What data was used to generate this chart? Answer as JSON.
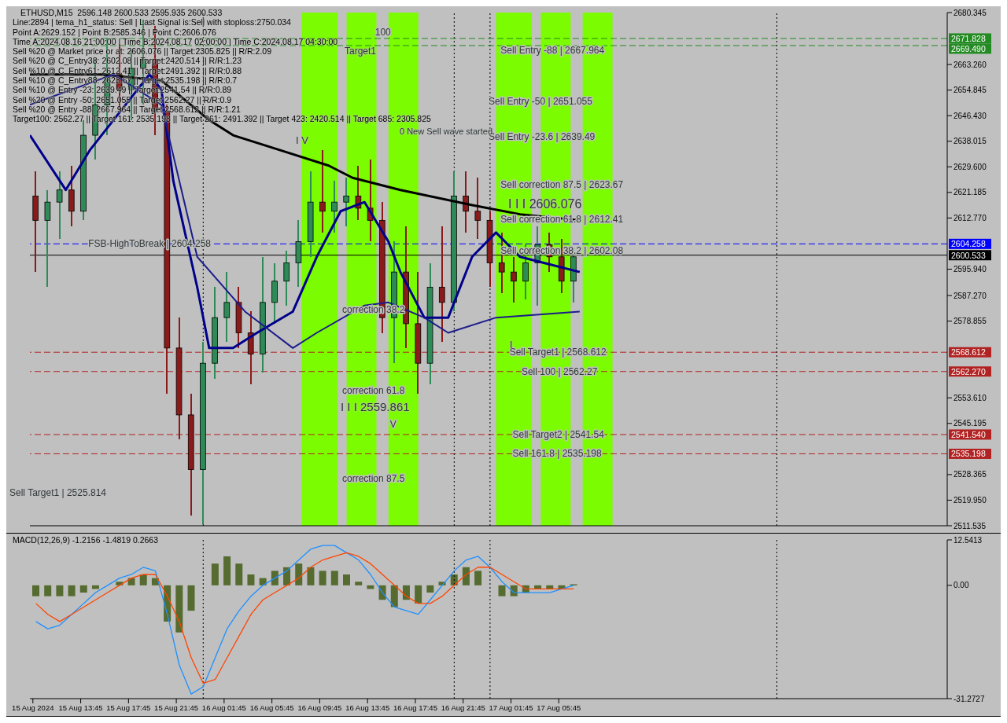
{
  "chart_data": [
    {
      "type": "candlestick",
      "title": "ETHUSD,M15  2596.148 2600.533 2595.935 2600.533",
      "x": [
        "2024-08-15T10:00",
        "2024-08-15T11:00",
        "2024-08-15T12:00",
        "2024-08-15T13:00",
        "2024-08-15T14:00",
        "2024-08-15T15:00",
        "2024-08-15T16:00",
        "2024-08-15T17:00",
        "2024-08-15T18:00",
        "2024-08-15T19:00",
        "2024-08-15T20:00",
        "2024-08-15T21:00",
        "2024-08-15T22:00",
        "2024-08-15T23:00",
        "2024-08-16T00:00",
        "2024-08-16T01:00",
        "2024-08-16T02:00",
        "2024-08-16T03:00",
        "2024-08-16T04:00",
        "2024-08-16T05:00",
        "2024-08-16T06:00",
        "2024-08-16T07:00",
        "2024-08-16T08:00",
        "2024-08-16T09:00",
        "2024-08-16T10:00",
        "2024-08-16T11:00",
        "2024-08-16T12:00",
        "2024-08-16T13:00",
        "2024-08-16T14:00",
        "2024-08-16T15:00",
        "2024-08-16T16:00",
        "2024-08-16T17:00",
        "2024-08-16T18:00",
        "2024-08-16T19:00",
        "2024-08-16T20:00",
        "2024-08-16T21:00",
        "2024-08-16T22:00",
        "2024-08-16T23:00",
        "2024-08-17T00:00",
        "2024-08-17T01:00",
        "2024-08-17T02:00",
        "2024-08-17T03:00",
        "2024-08-17T04:00",
        "2024-08-17T05:00",
        "2024-08-17T06:00",
        "2024-08-17T07:00"
      ],
      "ohlc": [
        [
          2620,
          2628,
          2595,
          2612
        ],
        [
          2612,
          2622,
          2590,
          2618
        ],
        [
          2618,
          2628,
          2606,
          2622
        ],
        [
          2622,
          2630,
          2610,
          2615
        ],
        [
          2615,
          2645,
          2612,
          2640
        ],
        [
          2640,
          2665,
          2632,
          2650
        ],
        [
          2650,
          2672,
          2640,
          2660
        ],
        [
          2660,
          2670,
          2648,
          2655
        ],
        [
          2655,
          2668,
          2645,
          2662
        ],
        [
          2662,
          2678,
          2650,
          2665
        ],
        [
          2665,
          2676,
          2640,
          2648
        ],
        [
          2648,
          2650,
          2555,
          2570
        ],
        [
          2570,
          2580,
          2540,
          2548
        ],
        [
          2548,
          2555,
          2515,
          2530
        ],
        [
          2530,
          2572,
          2512,
          2565
        ],
        [
          2565,
          2590,
          2560,
          2580
        ],
        [
          2580,
          2595,
          2572,
          2585
        ],
        [
          2585,
          2590,
          2570,
          2575
        ],
        [
          2575,
          2582,
          2558,
          2568
        ],
        [
          2568,
          2600,
          2562,
          2585
        ],
        [
          2585,
          2598,
          2578,
          2592
        ],
        [
          2592,
          2602,
          2584,
          2598
        ],
        [
          2598,
          2612,
          2590,
          2605
        ],
        [
          2605,
          2628,
          2600,
          2618
        ],
        [
          2618,
          2635,
          2608,
          2615
        ],
        [
          2615,
          2625,
          2608,
          2618
        ],
        [
          2618,
          2626,
          2610,
          2620
        ],
        [
          2620,
          2630,
          2612,
          2616
        ],
        [
          2616,
          2632,
          2605,
          2612
        ],
        [
          2612,
          2618,
          2575,
          2580
        ],
        [
          2580,
          2605,
          2565,
          2595
        ],
        [
          2595,
          2610,
          2570,
          2578
        ],
        [
          2578,
          2595,
          2555,
          2565
        ],
        [
          2565,
          2598,
          2558,
          2590
        ],
        [
          2590,
          2610,
          2572,
          2585
        ],
        [
          2585,
          2628,
          2582,
          2620
        ],
        [
          2620,
          2628,
          2608,
          2615
        ],
        [
          2615,
          2626,
          2606,
          2612
        ],
        [
          2612,
          2615,
          2590,
          2598
        ],
        [
          2598,
          2608,
          2588,
          2595
        ],
        [
          2595,
          2600,
          2585,
          2592
        ],
        [
          2592,
          2604,
          2586,
          2598
        ],
        [
          2598,
          2610,
          2584,
          2604
        ],
        [
          2604,
          2608,
          2595,
          2600
        ],
        [
          2600,
          2606,
          2588,
          2592
        ],
        [
          2592,
          2603,
          2585,
          2600
        ]
      ],
      "colors": [
        "#8b1a1a",
        "#2e8b57",
        "#2e8b57",
        "#8b1a1a",
        "#2e8b57",
        "#2e8b57",
        "#2e8b57",
        "#8b1a1a",
        "#2e8b57",
        "#2e8b57",
        "#8b1a1a",
        "#8b1a1a",
        "#8b1a1a",
        "#8b1a1a",
        "#2e8b57",
        "#2e8b57",
        "#2e8b57",
        "#8b1a1a",
        "#8b1a1a",
        "#2e8b57",
        "#2e8b57",
        "#2e8b57",
        "#2e8b57",
        "#2e8b57",
        "#8b1a1a",
        "#2e8b57",
        "#2e8b57",
        "#8b1a1a",
        "#8b1a1a",
        "#8b1a1a",
        "#2e8b57",
        "#8b1a1a",
        "#8b1a1a",
        "#2e8b57",
        "#8b1a1a",
        "#2e8b57",
        "#8b1a1a",
        "#8b1a1a",
        "#8b1a1a",
        "#8b1a1a",
        "#8b1a1a",
        "#2e8b57",
        "#2e8b57",
        "#8b1a1a",
        "#8b1a1a",
        "#2e8b57"
      ],
      "series": [
        {
          "type": "line",
          "color": "#000000",
          "x": [
            "2024-08-15T09:30",
            "2024-08-15T15:30",
            "2024-08-15T20:30",
            "2024-08-16T00:30",
            "2024-08-16T02:30",
            "2024-08-16T06:30",
            "2024-08-16T10:30",
            "2024-08-16T12:30",
            "2024-08-16T16:30",
            "2024-08-16T22:30",
            "2024-08-17T02:30",
            "2024-08-17T07:30"
          ],
          "values": [
            2660,
            2660,
            2658,
            2645,
            2640,
            2635,
            2630,
            2626,
            2622,
            2617,
            2614,
            2612
          ]
        },
        {
          "type": "line",
          "color": "#00008b",
          "x": [
            "2024-08-15T09:30",
            "2024-08-15T12:30",
            "2024-08-15T14:30",
            "2024-08-15T17:30",
            "2024-08-15T19:30",
            "2024-08-15T20:30",
            "2024-08-15T21:30",
            "2024-08-15T23:30",
            "2024-08-16T00:30",
            "2024-08-16T02:30",
            "2024-08-16T04:30",
            "2024-08-16T07:30",
            "2024-08-16T09:30",
            "2024-08-16T11:30",
            "2024-08-16T13:30",
            "2024-08-16T15:30",
            "2024-08-16T16:30",
            "2024-08-16T18:30",
            "2024-08-16T20:30",
            "2024-08-16T22:30",
            "2024-08-17T00:30",
            "2024-08-17T02:30",
            "2024-08-17T04:30",
            "2024-08-17T07:30"
          ],
          "values": [
            2640,
            2622,
            2635,
            2650,
            2660,
            2655,
            2625,
            2590,
            2570,
            2570,
            2575,
            2582,
            2600,
            2615,
            2618,
            2605,
            2595,
            2580,
            2580,
            2600,
            2608,
            2600,
            2598,
            2595
          ]
        },
        {
          "type": "line",
          "color": "#1c1c8c",
          "x": [
            "2024-08-15T09:30",
            "2024-08-15T16:30",
            "2024-08-15T20:30",
            "2024-08-15T23:30",
            "2024-08-16T03:30",
            "2024-08-16T07:30",
            "2024-08-16T09:30",
            "2024-08-16T13:30",
            "2024-08-16T15:30",
            "2024-08-16T18:30",
            "2024-08-16T20:30",
            "2024-08-17T00:30",
            "2024-08-17T07:30"
          ],
          "values": [
            2650,
            2660,
            2650,
            2600,
            2582,
            2570,
            2575,
            2584,
            2585,
            2580,
            2575,
            2580,
            2582
          ]
        }
      ],
      "xlim": [
        "2024-08-15T09:30",
        "2024-08-18T14:15"
      ],
      "ylim": [
        2511.535,
        2680.345
      ],
      "yticks": [
        {
          "value": 2680.345,
          "label": "2680.345"
        },
        {
          "value": 2663.26,
          "label": "2663.260"
        },
        {
          "value": 2654.845,
          "label": "2654.845"
        },
        {
          "value": 2646.43,
          "label": "2646.430"
        },
        {
          "value": 2638.015,
          "label": "2638.015"
        },
        {
          "value": 2629.6,
          "label": "2629.600"
        },
        {
          "value": 2621.185,
          "label": "2621.185"
        },
        {
          "value": 2612.77,
          "label": "2612.770"
        },
        {
          "value": 2595.94,
          "label": "2595.940"
        },
        {
          "value": 2587.27,
          "label": "2587.270"
        },
        {
          "value": 2578.855,
          "label": "2578.855"
        },
        {
          "value": 2553.61,
          "label": "2553.610"
        },
        {
          "value": 2545.195,
          "label": "2545.195"
        },
        {
          "value": 2528.365,
          "label": "2528.365"
        },
        {
          "value": 2519.95,
          "label": "2519.950"
        },
        {
          "value": 2511.535,
          "label": "2511.535"
        }
      ],
      "tick_labels": "y",
      "ref_lines": [
        {
          "axis": "y",
          "value": 2671.828,
          "label": "2671.828",
          "color": "#228b22",
          "line_style": "dashed"
        },
        {
          "axis": "y",
          "value": 2669.49,
          "label": "2669.490",
          "color": "#228b22",
          "line_style": "dashed"
        },
        {
          "axis": "y",
          "value": 2604.258,
          "label": "2604.258",
          "color": "#0000ff",
          "line_style": "dashed"
        },
        {
          "axis": "y",
          "value": 2600.533,
          "label": "2600.533",
          "color": "#000000",
          "line_style": "solid"
        },
        {
          "axis": "y",
          "value": 2568.612,
          "label": "2568.612",
          "color": "#b22222",
          "line_style": "dashed"
        },
        {
          "axis": "y",
          "value": 2562.27,
          "label": "2562.270",
          "color": "#b22222",
          "line_style": "dashed"
        },
        {
          "axis": "y",
          "value": 2541.54,
          "label": "2541.540",
          "color": "#b22222",
          "line_style": "dashed"
        },
        {
          "axis": "y",
          "value": 2535.198,
          "label": "2535.198",
          "color": "#b22222",
          "line_style": "dashed"
        },
        {
          "axis": "x",
          "value": "2024-08-16T00:00",
          "color": "#000000",
          "line_style": "dotted"
        },
        {
          "axis": "x",
          "value": "2024-08-16T21:00",
          "color": "#000000",
          "line_style": "dotted"
        },
        {
          "axis": "x",
          "value": "2024-08-17T00:00",
          "color": "#000000",
          "line_style": "dotted"
        },
        {
          "axis": "x",
          "value": "2024-08-18T00:00",
          "color": "#000000",
          "line_style": "dotted"
        }
      ],
      "bands": [
        {
          "axis": "x",
          "from": "2024-08-16T08:15",
          "to": "2024-08-16T11:15",
          "color": "#7cfc00"
        },
        {
          "axis": "x",
          "from": "2024-08-16T12:00",
          "to": "2024-08-16T14:30",
          "color": "#7cfc00"
        },
        {
          "axis": "x",
          "from": "2024-08-16T15:30",
          "to": "2024-08-16T18:00",
          "color": "#7cfc00"
        },
        {
          "axis": "x",
          "from": "2024-08-17T00:30",
          "to": "2024-08-17T03:30",
          "color": "#7cfc00"
        },
        {
          "axis": "x",
          "from": "2024-08-17T04:15",
          "to": "2024-08-17T06:45",
          "color": "#7cfc00"
        },
        {
          "axis": "x",
          "from": "2024-08-17T07:45",
          "to": "2024-08-17T10:15",
          "color": "#7cfc00"
        }
      ],
      "annotations": [
        "Line:2894 | tema_h1_status: Sell | Last Signal is:Sell with stoploss:2750.034",
        "Point A:2629.152 | Point B:2585.346 | Point C:2606.076",
        "Time A:2024.08.16 21:00:00 | Time B:2024.08.17 02:00:00 | Time C:2024.08.17 04:30:00",
        "Sell %20 @ Market price or at: 2606.076 || Target:2305.825 || R/R:2.09",
        "Sell %20 @ C_Entry38: 2602.08 || Target:2420.514 || R/R:1.23",
        "Sell %10 @ C_Entry61: 2612.41 || Target:2491.392 || R/R:0.88",
        "Sell %10 @ C_Entry88: 2623.67 || Target:2535.198 || R/R:0.7",
        "Sell %10 @ Entry -23: 2639.49 || Target:2541.54 || R/R:0.89",
        "Sell %20 @ Entry -50: 2651.055 || Target:2562.27 || R/R:0.9",
        "Sell %20 @ Entry -88: 2667.964 || Target:2568.612 || R/R:1.21",
        "Target100: 2562.27 || Target 161: 2535.198 || Target 261: 2491.392 || Target 423: 2420.514 || Target 685: 2305.825",
        "I I I 2606.076",
        "Sell Target1 | 2525.814",
        "0 New Sell wave started",
        "Target1",
        "I V",
        "I I I 2559.861",
        "I",
        {
          "text": "Sell Entry -88 | 2667.964",
          "x": "2024-08-17T00:45",
          "y": 2667.964
        },
        {
          "text": "Sell Entry -50 | 2651.055",
          "x": "2024-08-16T23:45",
          "y": 2651.055
        },
        {
          "text": "Sell Entry -23.6 | 2639.49",
          "x": "2024-08-16T23:45",
          "y": 2639.49
        },
        {
          "text": "Sell correction 87.5 | 2623.67",
          "x": "2024-08-17T00:45",
          "y": 2623.67
        },
        {
          "text": "Sell correction 61.8 | 2612.41",
          "x": "2024-08-17T00:45",
          "y": 2612.41
        },
        {
          "text": "Sell correction 38.2 | 2602.08",
          "x": "2024-08-17T00:45",
          "y": 2602.08
        },
        {
          "text": "Sell Target1 | 2568.612",
          "x": "2024-08-17T01:30",
          "y": 2568.612
        },
        {
          "text": "Sell 100 | 2562.27",
          "x": "2024-08-17T02:30",
          "y": 2562.27
        },
        {
          "text": "Sell Target2 | 2541.54",
          "x": "2024-08-17T01:45",
          "y": 2541.54
        },
        {
          "text": "Sell 161.8 | 2535.198",
          "x": "2024-08-17T01:45",
          "y": 2535.198
        },
        {
          "text": "FSB-HighToBreak | 2604.258",
          "x": "2024-08-15T14:15",
          "y": 2604.258
        },
        {
          "text": "100",
          "x": "2024-08-16T14:15",
          "y": 2674
        },
        {
          "text": "correction 38.2",
          "x": "2024-08-16T11:30",
          "y": 2582.6
        },
        {
          "text": "correction 61.8",
          "x": "2024-08-16T11:30",
          "y": 2556
        },
        {
          "text": "V",
          "x": "2024-08-16T15:30",
          "y": 2545
        },
        {
          "text": "correction 87.5",
          "x": "2024-08-16T11:30",
          "y": 2527
        }
      ]
    },
    {
      "type": "bar",
      "title": "MACD(12,26,9) -1.2156 -1.4819 0.2663",
      "x": [
        "2024-08-15T10:00",
        "2024-08-15T11:00",
        "2024-08-15T12:00",
        "2024-08-15T13:00",
        "2024-08-15T14:00",
        "2024-08-15T15:00",
        "2024-08-15T16:00",
        "2024-08-15T17:00",
        "2024-08-15T18:00",
        "2024-08-15T19:00",
        "2024-08-15T20:00",
        "2024-08-15T21:00",
        "2024-08-15T22:00",
        "2024-08-15T23:00",
        "2024-08-16T00:00",
        "2024-08-16T01:00",
        "2024-08-16T02:00",
        "2024-08-16T03:00",
        "2024-08-16T04:00",
        "2024-08-16T05:00",
        "2024-08-16T06:00",
        "2024-08-16T07:00",
        "2024-08-16T08:00",
        "2024-08-16T09:00",
        "2024-08-16T10:00",
        "2024-08-16T11:00",
        "2024-08-16T12:00",
        "2024-08-16T13:00",
        "2024-08-16T14:00",
        "2024-08-16T15:00",
        "2024-08-16T16:00",
        "2024-08-16T17:00",
        "2024-08-16T18:00",
        "2024-08-16T19:00",
        "2024-08-16T20:00",
        "2024-08-16T21:00",
        "2024-08-16T22:00",
        "2024-08-16T23:00",
        "2024-08-17T00:00",
        "2024-08-17T01:00",
        "2024-08-17T02:00",
        "2024-08-17T03:00",
        "2024-08-17T04:00",
        "2024-08-17T05:00",
        "2024-08-17T06:00",
        "2024-08-17T07:00"
      ],
      "series": [
        {
          "type": "bar",
          "color": "#556b2f",
          "values": [
            -3,
            -3,
            -3,
            -3,
            -2,
            -1,
            0,
            1,
            2,
            3,
            2,
            -10,
            -13,
            -7,
            0,
            6,
            8,
            6,
            3,
            2,
            4,
            5,
            6,
            5,
            4,
            4,
            3,
            1,
            -1,
            -4,
            -6,
            -4,
            -5,
            -2,
            1,
            3,
            5,
            4,
            0,
            -3,
            -3,
            -2,
            -1,
            -1,
            -1,
            0.3
          ]
        },
        {
          "type": "line",
          "color": "#1e90ff",
          "values": [
            -10,
            -12,
            -11,
            -8,
            -5,
            -2,
            0,
            2,
            3,
            5,
            4,
            -8,
            -22,
            -30,
            -28,
            -20,
            -12,
            -7,
            -3,
            0,
            2,
            4,
            7,
            10,
            11,
            11,
            9,
            7,
            3,
            -2,
            -6,
            -7,
            -8,
            -4,
            0,
            4,
            7,
            8,
            5,
            1,
            -2,
            -2,
            -2,
            -2,
            -1,
            0
          ]
        },
        {
          "type": "line",
          "color": "#ff4500",
          "values": [
            -5,
            -8,
            -10,
            -8,
            -6,
            -4,
            -2,
            0,
            2,
            3,
            3,
            -3,
            -10,
            -20,
            -27,
            -26,
            -20,
            -14,
            -8,
            -4,
            -2,
            0,
            2,
            5,
            7,
            8,
            9,
            8,
            6,
            3,
            0,
            -3,
            -5,
            -5,
            -3,
            0,
            3,
            5,
            5,
            3,
            1,
            -1,
            -1,
            -1,
            -1,
            -1
          ]
        }
      ],
      "xlim": [
        "2024-08-15T09:30",
        "2024-08-18T14:15"
      ],
      "xticks": [
        {
          "value": "2024-08-15T09:45",
          "label": "15 Aug 2024"
        },
        {
          "value": "2024-08-15T13:45",
          "label": "15 Aug 13:45"
        },
        {
          "value": "2024-08-15T17:45",
          "label": "15 Aug 17:45"
        },
        {
          "value": "2024-08-15T21:45",
          "label": "15 Aug 21:45"
        },
        {
          "value": "2024-08-16T01:45",
          "label": "16 Aug 01:45"
        },
        {
          "value": "2024-08-16T05:45",
          "label": "16 Aug 05:45"
        },
        {
          "value": "2024-08-16T09:45",
          "label": "16 Aug 09:45"
        },
        {
          "value": "2024-08-16T13:45",
          "label": "16 Aug 13:45"
        },
        {
          "value": "2024-08-16T17:45",
          "label": "16 Aug 17:45"
        },
        {
          "value": "2024-08-16T21:45",
          "label": "16 Aug 21:45"
        },
        {
          "value": "2024-08-17T01:45",
          "label": "17 Aug 01:45"
        },
        {
          "value": "2024-08-17T05:45",
          "label": "17 Aug 05:45"
        }
      ],
      "ylim": [
        -31.2727,
        12.5413
      ],
      "yticks": [
        {
          "value": 12.5413,
          "label": "12.5413"
        },
        {
          "value": 0,
          "label": "0.00"
        },
        {
          "value": -31.2727,
          "label": "-31.2727"
        }
      ],
      "ref_lines": [
        {
          "axis": "x",
          "value": "2024-08-16T00:00",
          "color": "#000000",
          "line_style": "dotted"
        },
        {
          "axis": "x",
          "value": "2024-08-16T21:00",
          "color": "#000000",
          "line_style": "dotted"
        },
        {
          "axis": "x",
          "value": "2024-08-17T00:00",
          "color": "#000000",
          "line_style": "dotted"
        },
        {
          "axis": "x",
          "value": "2024-08-18T00:00",
          "color": "#000000",
          "line_style": "dotted"
        }
      ]
    }
  ]
}
